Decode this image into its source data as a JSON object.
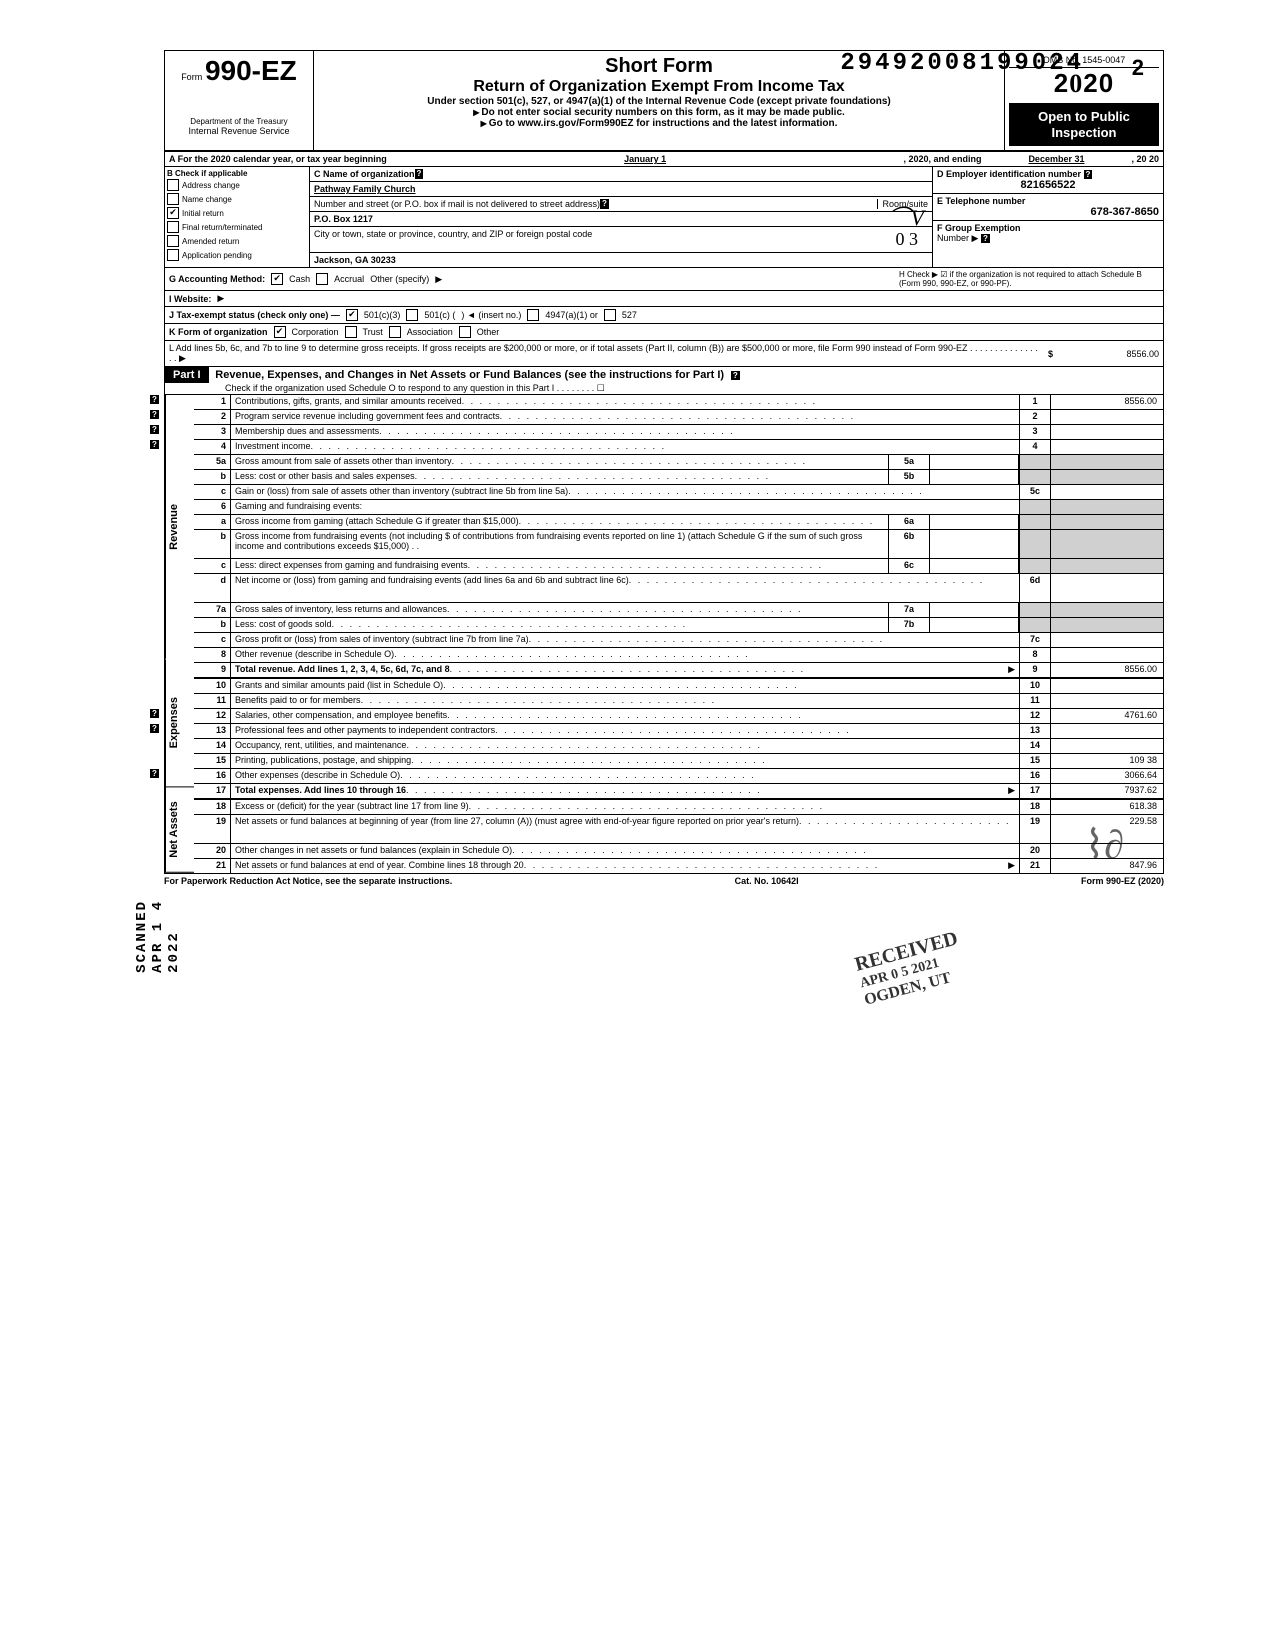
{
  "top_stamp_number": "29492008199024",
  "top_stamp_2": "2",
  "omb_no": "OMB No. 1545-0047",
  "form_label": "Form",
  "form_number": "990-EZ",
  "dept_line1": "Department of the Treasury",
  "dept_line2": "Internal Revenue Service",
  "title_short": "Short Form",
  "title_main": "Return of Organization Exempt From Income Tax",
  "title_under": "Under section 501(c), 527, or 4947(a)(1) of the Internal Revenue Code (except private foundations)",
  "note_ssn": "Do not enter social security numbers on this form, as it may be made public.",
  "note_goto": "Go to www.irs.gov/Form990EZ for instructions and the latest information.",
  "year_display": "2020",
  "open_public_1": "Open to Public",
  "open_public_2": "Inspection",
  "row_a_text": "A For the 2020 calendar year, or tax year beginning",
  "row_a_begin": "January 1",
  "row_a_mid": ", 2020, and ending",
  "row_a_end": "December 31",
  "row_a_year": ", 20   20",
  "b_header": "B Check if applicable",
  "b_items": [
    "Address change",
    "Name change",
    "Initial return",
    "Final return/terminated",
    "Amended return",
    "Application pending"
  ],
  "b_checked": [
    false,
    false,
    true,
    false,
    false,
    false
  ],
  "c_name_label": "C Name of organization",
  "c_name": "Pathway Family Church",
  "c_street_label": "Number and street (or P.O. box if mail is not delivered to street address)",
  "c_room_label": "Room/suite",
  "c_street": "P.O. Box 1217",
  "c_city_label": "City or town, state or province, country, and ZIP or foreign postal code",
  "c_city": "Jackson, GA 30233",
  "d_label": "D Employer identification number",
  "d_ein": "821656522",
  "e_label": "E Telephone number",
  "e_phone": "678-367-8650",
  "f_label": "F Group Exemption",
  "f_label2": "Number",
  "g_label": "G Accounting Method:",
  "g_cash": "Cash",
  "g_accrual": "Accrual",
  "g_other": "Other (specify)",
  "h_text": "H Check ▶ ☑ if the organization is not required to attach Schedule B (Form 990, 990-EZ, or 990-PF).",
  "i_label": "I Website:",
  "j_label": "J Tax-exempt status (check only one) —",
  "j_501c3": "501(c)(3)",
  "j_501c": "501(c) (",
  "j_insert": ") ◄ (insert no.)",
  "j_4947": "4947(a)(1) or",
  "j_527": "527",
  "k_label": "K Form of organization",
  "k_corp": "Corporation",
  "k_trust": "Trust",
  "k_assoc": "Association",
  "k_other": "Other",
  "l_text": "L Add lines 5b, 6c, and 7b to line 9 to determine gross receipts. If gross receipts are $200,000 or more, or if total assets (Part II, column (B)) are $500,000 or more, file Form 990 instead of Form 990-EZ .  .  .  .  .  .  .  .  .  .  .  .  .  .  .  .  ▶",
  "l_amount": "8556.00",
  "part1_label": "Part I",
  "part1_title": "Revenue, Expenses, and Changes in Net Assets or Fund Balances (see the instructions for Part I)",
  "part1_check": "Check if the organization used Schedule O to respond to any question in this Part I .  .  .  .  .  .  .  .  ☐",
  "sections": {
    "revenue": "Revenue",
    "expenses": "Expenses",
    "net_assets": "Net Assets"
  },
  "lines": [
    {
      "n": "1",
      "t": "Contributions, gifts, grants, and similar amounts received",
      "rn": "1",
      "rv": "8556.00",
      "help": true
    },
    {
      "n": "2",
      "t": "Program service revenue including government fees and contracts",
      "rn": "2",
      "rv": "",
      "help": true
    },
    {
      "n": "3",
      "t": "Membership dues and assessments",
      "rn": "3",
      "rv": "",
      "help": true
    },
    {
      "n": "4",
      "t": "Investment income",
      "rn": "4",
      "rv": "",
      "help": true
    },
    {
      "n": "5a",
      "t": "Gross amount from sale of assets other than inventory",
      "mid_n": "5a",
      "mid_v": "",
      "shaded_rt": true
    },
    {
      "n": "b",
      "t": "Less: cost or other basis and sales expenses",
      "mid_n": "5b",
      "mid_v": "",
      "shaded_rt": true
    },
    {
      "n": "c",
      "t": "Gain or (loss) from sale of assets other than inventory (subtract line 5b from line 5a)",
      "rn": "5c",
      "rv": ""
    },
    {
      "n": "6",
      "t": "Gaming and fundraising events:",
      "shaded_rt": true,
      "no_dots": true
    },
    {
      "n": "a",
      "t": "Gross income from gaming (attach Schedule G if greater than $15,000)",
      "mid_n": "6a",
      "mid_v": "",
      "shaded_rt": true
    },
    {
      "n": "b",
      "t": "Gross income from fundraising events (not including  $                of contributions from fundraising events reported on line 1) (attach Schedule G if the sum of such gross income and contributions exceeds $15,000) .  .",
      "mid_n": "6b",
      "mid_v": "",
      "shaded_rt": true,
      "tall": true,
      "no_dots": true
    },
    {
      "n": "c",
      "t": "Less: direct expenses from gaming and fundraising events",
      "mid_n": "6c",
      "mid_v": "",
      "shaded_rt": true
    },
    {
      "n": "d",
      "t": "Net income or (loss) from gaming and fundraising events (add lines 6a and 6b and subtract line 6c)",
      "rn": "6d",
      "rv": "",
      "tall": true
    },
    {
      "n": "7a",
      "t": "Gross sales of inventory, less returns and allowances",
      "mid_n": "7a",
      "mid_v": "",
      "shaded_rt": true
    },
    {
      "n": "b",
      "t": "Less: cost of goods sold",
      "mid_n": "7b",
      "mid_v": "",
      "shaded_rt": true
    },
    {
      "n": "c",
      "t": "Gross profit or (loss) from sales of inventory (subtract line 7b from line 7a)",
      "rn": "7c",
      "rv": ""
    },
    {
      "n": "8",
      "t": "Other revenue (describe in Schedule O)",
      "rn": "8",
      "rv": ""
    },
    {
      "n": "9",
      "t": "Total revenue. Add lines 1, 2, 3, 4, 5c, 6d, 7c, and 8",
      "rn": "9",
      "rv": "8556.00",
      "bold": true,
      "arrow": true
    }
  ],
  "exp_lines": [
    {
      "n": "10",
      "t": "Grants and similar amounts paid (list in Schedule O)",
      "rn": "10",
      "rv": ""
    },
    {
      "n": "11",
      "t": "Benefits paid to or for members",
      "rn": "11",
      "rv": ""
    },
    {
      "n": "12",
      "t": "Salaries, other compensation, and employee benefits",
      "rn": "12",
      "rv": "4761.60",
      "help": true
    },
    {
      "n": "13",
      "t": "Professional fees and other payments to independent contractors",
      "rn": "13",
      "rv": "",
      "help": true
    },
    {
      "n": "14",
      "t": "Occupancy, rent, utilities, and maintenance",
      "rn": "14",
      "rv": ""
    },
    {
      "n": "15",
      "t": "Printing, publications, postage, and shipping",
      "rn": "15",
      "rv": "109 38"
    },
    {
      "n": "16",
      "t": "Other expenses (describe in Schedule O)",
      "rn": "16",
      "rv": "3066.64",
      "help": true
    },
    {
      "n": "17",
      "t": "Total expenses. Add lines 10 through 16",
      "rn": "17",
      "rv": "7937.62",
      "bold": true,
      "arrow": true
    }
  ],
  "na_lines": [
    {
      "n": "18",
      "t": "Excess or (deficit) for the year (subtract line 17 from line 9)",
      "rn": "18",
      "rv": "618.38"
    },
    {
      "n": "19",
      "t": "Net assets or fund balances at beginning of year (from line 27, column (A)) (must agree with end-of-year figure reported on prior year's return)",
      "rn": "19",
      "rv": "229.58",
      "tall": true
    },
    {
      "n": "20",
      "t": "Other changes in net assets or fund balances (explain in Schedule O)",
      "rn": "20",
      "rv": ""
    },
    {
      "n": "21",
      "t": "Net assets or fund balances at end of year. Combine lines 18 through 20",
      "rn": "21",
      "rv": "847.96",
      "arrow": true
    }
  ],
  "footer_left": "For Paperwork Reduction Act Notice, see the separate instructions.",
  "footer_mid": "Cat. No. 10642I",
  "footer_right": "Form 990-EZ (2020)",
  "side_stamp": "SCANNED APR 1 4 2022",
  "received_stamp": "RECEIVED",
  "received_date": "APR 0 5 2021",
  "received_loc": "OGDEN, UT",
  "hand_mark": "⌒V",
  "hand_03": "0 3",
  "dollar_sign": "$"
}
